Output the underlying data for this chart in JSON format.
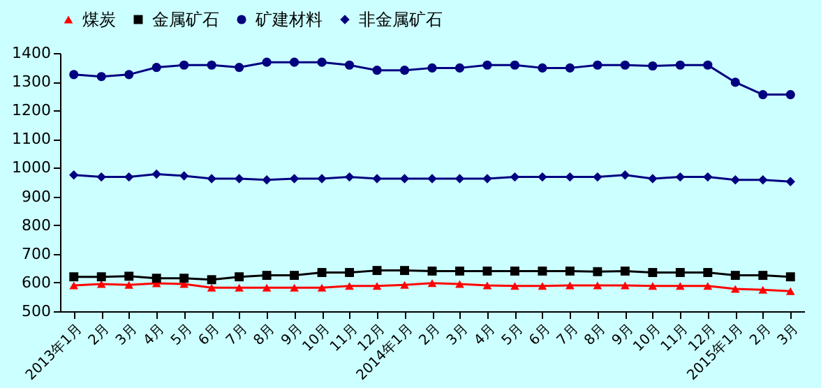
{
  "chart_data": {
    "type": "line",
    "categories": [
      "2013年1月",
      "2月",
      "3月",
      "4月",
      "5月",
      "6月",
      "7月",
      "8月",
      "9月",
      "10月",
      "11月",
      "12月",
      "2014年1月",
      "2月",
      "3月",
      "4月",
      "5月",
      "6月",
      "7月",
      "8月",
      "9月",
      "10月",
      "11月",
      "12月",
      "2015年1月",
      "2月",
      "3月"
    ],
    "series": [
      {
        "name": "煤炭",
        "color": "#ff0000",
        "marker": "triangle",
        "values": [
          590,
          595,
          592,
          597,
          595,
          582,
          582,
          582,
          582,
          582,
          588,
          588,
          592,
          598,
          595,
          590,
          588,
          588,
          590,
          590,
          590,
          588,
          588,
          588,
          578,
          575,
          570
        ]
      },
      {
        "name": "金属矿石",
        "color": "#000000",
        "marker": "square",
        "values": [
          620,
          620,
          622,
          615,
          615,
          610,
          620,
          625,
          625,
          635,
          635,
          642,
          642,
          640,
          640,
          640,
          640,
          640,
          640,
          638,
          640,
          635,
          635,
          635,
          625,
          625,
          620
        ]
      },
      {
        "name": "矿建材料",
        "color": "#000080",
        "marker": "circle",
        "values": [
          1325,
          1318,
          1325,
          1350,
          1358,
          1358,
          1350,
          1368,
          1368,
          1368,
          1358,
          1340,
          1340,
          1348,
          1348,
          1358,
          1358,
          1348,
          1348,
          1358,
          1358,
          1355,
          1358,
          1358,
          1298,
          1255,
          1255
        ]
      },
      {
        "name": "非金属矿石",
        "color": "#000080",
        "marker": "diamond",
        "values": [
          975,
          968,
          968,
          978,
          972,
          962,
          962,
          958,
          962,
          962,
          968,
          962,
          962,
          962,
          962,
          962,
          968,
          968,
          968,
          968,
          975,
          962,
          968,
          968,
          958,
          958,
          952
        ]
      }
    ],
    "ylim": [
      500,
      1400
    ],
    "yticks": [
      500,
      600,
      700,
      800,
      900,
      1000,
      1100,
      1200,
      1300,
      1400
    ],
    "grid": false,
    "legend": "top"
  }
}
